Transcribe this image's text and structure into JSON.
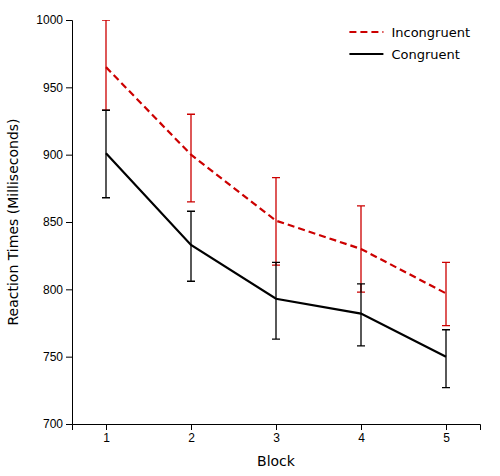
{
  "chart_data": {
    "type": "line",
    "x": [
      1,
      2,
      3,
      4,
      5
    ],
    "xlabel": "Block",
    "ylabel": "Reaction Times (Milliseconds)",
    "xlim": [
      0.6,
      5.4
    ],
    "ylim": [
      700,
      1000
    ],
    "xticks": [
      1,
      2,
      3,
      4,
      5
    ],
    "yticks": [
      700,
      750,
      800,
      850,
      900,
      950,
      1000
    ],
    "legend": "upper right",
    "series": [
      {
        "name": "Incongruent",
        "color": "#cc0000",
        "line_style": "dashed",
        "values": [
          965,
          900,
          851,
          830,
          797
        ],
        "upper": [
          1000,
          930,
          883,
          862,
          820
        ],
        "lower": [
          933,
          865,
          818,
          798,
          773
        ]
      },
      {
        "name": "Congruent",
        "color": "#000000",
        "line_style": "solid",
        "values": [
          901,
          833,
          793,
          782,
          750
        ],
        "upper": [
          933,
          858,
          820,
          804,
          770
        ],
        "lower": [
          868,
          806,
          763,
          758,
          727
        ]
      }
    ]
  }
}
